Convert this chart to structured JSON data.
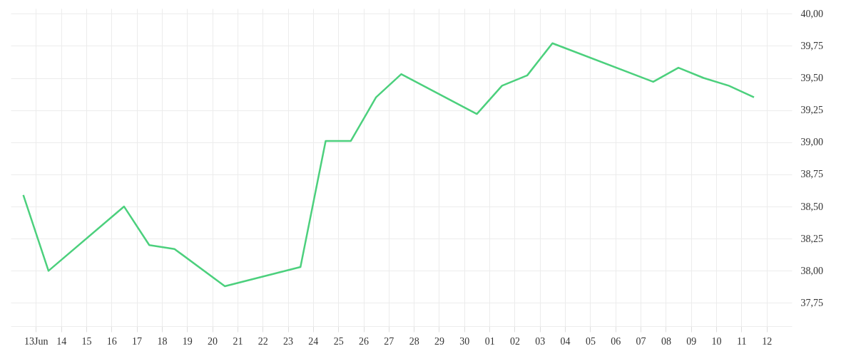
{
  "chart_data": {
    "type": "line",
    "x": [
      "--06-12T12:00",
      "--06-13T12:00",
      "--06-16T12:00",
      "--06-17T12:00",
      "--06-18T12:00",
      "--06-20T12:00",
      "--06-23T12:00",
      "--06-24T12:00",
      "--06-25T12:00",
      "--06-26T12:00",
      "--06-27T12:00",
      "--06-30T12:00",
      "--07-01T12:00",
      "--07-02T12:00",
      "--07-03T12:00",
      "--07-07T12:00",
      "--07-08T12:00",
      "--07-09T12:00",
      "--07-10T12:00",
      "--07-11T12:00"
    ],
    "series": [
      {
        "color": "#4cd07d",
        "values": [
          38.59,
          38.0,
          38.5,
          38.2,
          38.17,
          37.88,
          38.03,
          39.01,
          39.01,
          39.35,
          39.53,
          39.22,
          39.44,
          39.52,
          39.77,
          39.47,
          39.58,
          39.5,
          39.44,
          39.35
        ]
      }
    ],
    "xlim": [
      "--06-12",
      "--07-13"
    ],
    "xticks": [
      {
        "value": "--06-13",
        "label": "13Jun"
      },
      {
        "value": "--06-14",
        "label": "14"
      },
      {
        "value": "--06-15",
        "label": "15"
      },
      {
        "value": "--06-16",
        "label": "16"
      },
      {
        "value": "--06-17",
        "label": "17"
      },
      {
        "value": "--06-18",
        "label": "18"
      },
      {
        "value": "--06-19",
        "label": "19"
      },
      {
        "value": "--06-20",
        "label": "20"
      },
      {
        "value": "--06-21",
        "label": "21"
      },
      {
        "value": "--06-22",
        "label": "22"
      },
      {
        "value": "--06-23",
        "label": "23"
      },
      {
        "value": "--06-24",
        "label": "24"
      },
      {
        "value": "--06-25",
        "label": "25"
      },
      {
        "value": "--06-26",
        "label": "26"
      },
      {
        "value": "--06-27",
        "label": "27"
      },
      {
        "value": "--06-28",
        "label": "28"
      },
      {
        "value": "--06-29",
        "label": "29"
      },
      {
        "value": "--06-30",
        "label": "30"
      },
      {
        "value": "--07-01",
        "label": "01"
      },
      {
        "value": "--07-02",
        "label": "02"
      },
      {
        "value": "--07-03",
        "label": "03"
      },
      {
        "value": "--07-04",
        "label": "04"
      },
      {
        "value": "--07-05",
        "label": "05"
      },
      {
        "value": "--07-06",
        "label": "06"
      },
      {
        "value": "--07-07",
        "label": "07"
      },
      {
        "value": "--07-08",
        "label": "08"
      },
      {
        "value": "--07-09",
        "label": "09"
      },
      {
        "value": "--07-10",
        "label": "10"
      },
      {
        "value": "--07-11",
        "label": "11"
      },
      {
        "value": "--07-12",
        "label": "12"
      }
    ],
    "ylim": [
      37.57,
      40.04
    ],
    "yticks": [
      {
        "value": 37.75,
        "label": "37,75"
      },
      {
        "value": 38,
        "label": "38,00"
      },
      {
        "value": 38.25,
        "label": "38,25"
      },
      {
        "value": 38.5,
        "label": "38,50"
      },
      {
        "value": 38.75,
        "label": "38,75"
      },
      {
        "value": 39,
        "label": "39,00"
      },
      {
        "value": 39.25,
        "label": "39,25"
      },
      {
        "value": 39.5,
        "label": "39,50"
      },
      {
        "value": 39.75,
        "label": "39,75"
      },
      {
        "value": 40,
        "label": "40,00"
      }
    ],
    "grid": true
  }
}
